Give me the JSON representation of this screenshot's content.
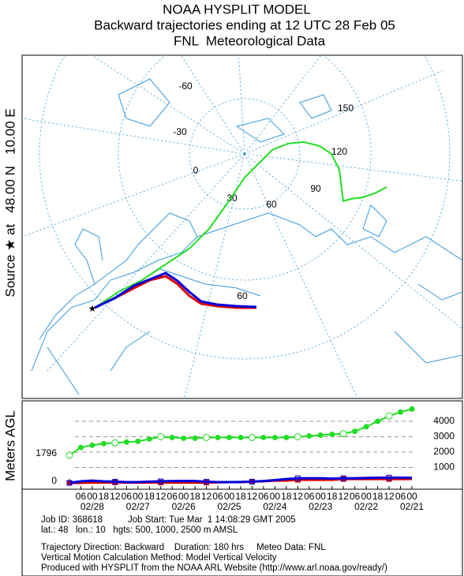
{
  "header": {
    "line1": "NOAA HYSPLIT MODEL",
    "line2": "Backward trajectories ending at 12 UTC 28 Feb 05",
    "line3": "FNL  Meteorological Data"
  },
  "source_label": "Source ★ at   48.00 N   10.00 E",
  "map": {
    "lon_labels": [
      "-60",
      "-30",
      "0",
      "30",
      "60",
      "90",
      "120",
      "150"
    ],
    "lat_labels": [
      "60"
    ]
  },
  "chart_data": {
    "type": "line",
    "ylabel": "Meters AGL",
    "start_labels": [
      {
        "value": 1796,
        "label": "1796"
      },
      {
        "value": 0,
        "label": "0"
      }
    ],
    "ylim": [
      -400,
      5300
    ],
    "yticks": [
      1000,
      2000,
      3000,
      4000
    ],
    "xlim": [
      0,
      -180
    ],
    "x": [
      0,
      -6,
      -12,
      -18,
      -24,
      -30,
      -36,
      -42,
      -48,
      -54,
      -60,
      -66,
      -72,
      -78,
      -84,
      -90,
      -96,
      -102,
      -108,
      -114,
      -120,
      -126,
      -132,
      -138,
      -144,
      -150,
      -156,
      -162,
      -168,
      -174,
      -180
    ],
    "xticks": [
      {
        "value": -6,
        "label": "06"
      },
      {
        "value": -12,
        "label": "00"
      },
      {
        "value": -18,
        "label": "18"
      },
      {
        "value": -24,
        "label": "12"
      },
      {
        "value": -30,
        "label": "06"
      },
      {
        "value": -36,
        "label": "00"
      },
      {
        "value": -42,
        "label": "18"
      },
      {
        "value": -48,
        "label": "12"
      },
      {
        "value": -54,
        "label": "06"
      },
      {
        "value": -60,
        "label": "00"
      },
      {
        "value": -66,
        "label": "18"
      },
      {
        "value": -72,
        "label": "12"
      },
      {
        "value": -78,
        "label": "06"
      },
      {
        "value": -84,
        "label": "00"
      },
      {
        "value": -90,
        "label": "18"
      },
      {
        "value": -96,
        "label": "12"
      },
      {
        "value": -102,
        "label": "06"
      },
      {
        "value": -108,
        "label": "00"
      },
      {
        "value": -114,
        "label": "18"
      },
      {
        "value": -120,
        "label": "12"
      },
      {
        "value": -126,
        "label": "06"
      },
      {
        "value": -132,
        "label": "00"
      },
      {
        "value": -138,
        "label": "18"
      },
      {
        "value": -144,
        "label": "12"
      },
      {
        "value": -150,
        "label": "06"
      },
      {
        "value": -156,
        "label": "00"
      },
      {
        "value": -162,
        "label": "18"
      },
      {
        "value": -168,
        "label": "12"
      },
      {
        "value": -174,
        "label": "06"
      },
      {
        "value": -180,
        "label": "00"
      }
    ],
    "date_ticks": [
      {
        "value": -12,
        "label": "02/28"
      },
      {
        "value": -36,
        "label": "02/27"
      },
      {
        "value": -60,
        "label": "02/26"
      },
      {
        "value": -84,
        "label": "02/25"
      },
      {
        "value": -108,
        "label": "02/24"
      },
      {
        "value": -132,
        "label": "02/23"
      },
      {
        "value": -156,
        "label": "02/22"
      },
      {
        "value": -180,
        "label": "02/21"
      }
    ],
    "series": [
      {
        "color": "#22dd22",
        "values": [
          1796,
          2300,
          2450,
          2550,
          2600,
          2650,
          2700,
          2850,
          3000,
          2950,
          2900,
          2900,
          2950,
          2950,
          2950,
          2950,
          2950,
          2950,
          2950,
          2950,
          3000,
          3050,
          3100,
          3150,
          3200,
          3350,
          3650,
          4000,
          4350,
          4600,
          4800
        ]
      },
      {
        "color": "#dd0000",
        "values": [
          0,
          0,
          20,
          20,
          30,
          20,
          20,
          20,
          30,
          20,
          20,
          20,
          20,
          30,
          50,
          50,
          80,
          100,
          150,
          150,
          200,
          200,
          200,
          200,
          250,
          250,
          250,
          250,
          250,
          250,
          250
        ]
      },
      {
        "color": "#0000dd",
        "values": [
          0,
          100,
          150,
          100,
          80,
          50,
          50,
          80,
          100,
          120,
          130,
          120,
          80,
          50,
          50,
          60,
          80,
          120,
          180,
          250,
          300,
          300,
          300,
          280,
          300,
          300,
          320,
          340,
          340,
          340,
          330
        ]
      }
    ]
  },
  "footer": {
    "line1": "Job ID: 368618          Job Start: Tue Mar  1 14:08:29 GMT 2005",
    "line2": "lat.: 48   lon.: 10   hgts: 500, 1000, 2500 m AMSL",
    "line3": "Trajectory Direction: Backward    Duration: 180 hrs     Meteo Data: FNL",
    "line4": "Vertical Motion Calculation Method: Model Vertical Velocity",
    "line5": "Produced with HYSPLIT from the NOAA ARL Website (http://www.arl.noaa.gov/ready/)"
  }
}
